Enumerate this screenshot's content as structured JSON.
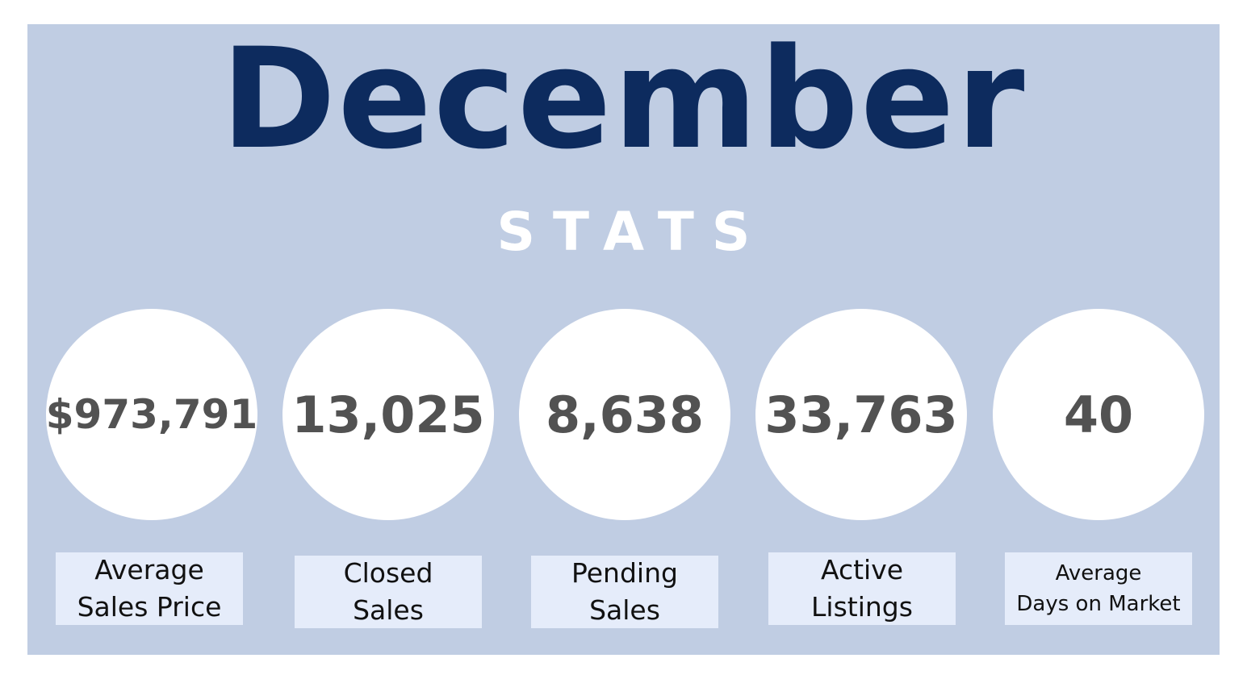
{
  "header": {
    "title": "December",
    "subtitle": "STATS"
  },
  "stats": [
    {
      "value": "$973,791",
      "label_line1": "Average",
      "label_line2": "Sales Price"
    },
    {
      "value": "13,025",
      "label_line1": "Closed",
      "label_line2": "Sales"
    },
    {
      "value": "8,638",
      "label_line1": "Pending",
      "label_line2": "Sales"
    },
    {
      "value": "33,763",
      "label_line1": "Active",
      "label_line2": "Listings"
    },
    {
      "value": "40",
      "label_line1": "Average",
      "label_line2": "Days on Market"
    }
  ],
  "colors": {
    "panel_background": "#c0cde3",
    "title": "#0d2b5e",
    "subtitle": "#ffffff",
    "stat_value": "#525252",
    "label_background": "#e5ecfa"
  }
}
